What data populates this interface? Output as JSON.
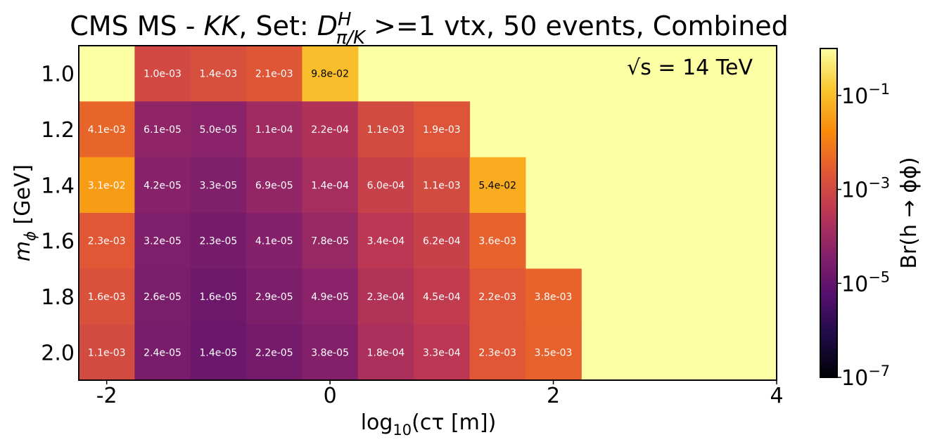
{
  "chart_data": {
    "type": "heatmap",
    "title": {
      "prefix": "CMS MS - ",
      "kk": "KK",
      "set": ", Set: ",
      "d": "D",
      "d_sup": "H",
      "d_sub": "π/K",
      "suffix": " >=1 vtx, 50 events, Combined"
    },
    "xlabel": {
      "base": "log",
      "sub": "10",
      "rest": "(cτ [m])"
    },
    "ylabel": {
      "base": "m",
      "sub": "ϕ",
      "rest": " [GeV]"
    },
    "colorbar_label": "Br(h → ϕϕ)",
    "annotation": "√s = 14 TeV",
    "x_range": [
      -2.25,
      4.0
    ],
    "x_ticks": [
      -2,
      0,
      2,
      4
    ],
    "x_centers": [
      -2.0,
      -1.5,
      -1.0,
      -0.5,
      0.0,
      0.5,
      1.0,
      1.5,
      2.0
    ],
    "y_categories": [
      "1.0",
      "1.2",
      "1.4",
      "1.6",
      "1.8",
      "2.0"
    ],
    "colorscale": "inferno",
    "color_log_range": [
      -7,
      0
    ],
    "background_value": 1.0,
    "colorbar_ticks": [
      {
        "exp": -1,
        "base": "10",
        "sup": "−1"
      },
      {
        "exp": -3,
        "base": "10",
        "sup": "−3"
      },
      {
        "exp": -5,
        "base": "10",
        "sup": "−5"
      },
      {
        "exp": -7,
        "base": "10",
        "sup": "−7"
      }
    ],
    "rows": [
      {
        "y": "1.0",
        "cells": [
          {
            "x": -2.0,
            "label": null
          },
          {
            "x": -1.5,
            "label": "1.0e-03"
          },
          {
            "x": -1.0,
            "label": "1.4e-03"
          },
          {
            "x": -0.5,
            "label": "2.1e-03"
          },
          {
            "x": 0.0,
            "label": "9.8e-02"
          }
        ]
      },
      {
        "y": "1.2",
        "cells": [
          {
            "x": -2.0,
            "label": "4.1e-03"
          },
          {
            "x": -1.5,
            "label": "6.1e-05"
          },
          {
            "x": -1.0,
            "label": "5.0e-05"
          },
          {
            "x": -0.5,
            "label": "1.1e-04"
          },
          {
            "x": 0.0,
            "label": "2.2e-04"
          },
          {
            "x": 0.5,
            "label": "1.1e-03"
          },
          {
            "x": 1.0,
            "label": "1.9e-03"
          }
        ]
      },
      {
        "y": "1.4",
        "cells": [
          {
            "x": -2.0,
            "label": "3.1e-02"
          },
          {
            "x": -1.5,
            "label": "4.2e-05"
          },
          {
            "x": -1.0,
            "label": "3.3e-05"
          },
          {
            "x": -0.5,
            "label": "6.9e-05"
          },
          {
            "x": 0.0,
            "label": "1.4e-04"
          },
          {
            "x": 0.5,
            "label": "6.0e-04"
          },
          {
            "x": 1.0,
            "label": "1.1e-03"
          },
          {
            "x": 1.5,
            "label": "5.4e-02"
          }
        ]
      },
      {
        "y": "1.6",
        "cells": [
          {
            "x": -2.0,
            "label": "2.3e-03"
          },
          {
            "x": -1.5,
            "label": "3.2e-05"
          },
          {
            "x": -1.0,
            "label": "2.3e-05"
          },
          {
            "x": -0.5,
            "label": "4.1e-05"
          },
          {
            "x": 0.0,
            "label": "7.8e-05"
          },
          {
            "x": 0.5,
            "label": "3.4e-04"
          },
          {
            "x": 1.0,
            "label": "6.2e-04"
          },
          {
            "x": 1.5,
            "label": "3.6e-03"
          }
        ]
      },
      {
        "y": "1.8",
        "cells": [
          {
            "x": -2.0,
            "label": "1.6e-03"
          },
          {
            "x": -1.5,
            "label": "2.6e-05"
          },
          {
            "x": -1.0,
            "label": "1.6e-05"
          },
          {
            "x": -0.5,
            "label": "2.9e-05"
          },
          {
            "x": 0.0,
            "label": "4.9e-05"
          },
          {
            "x": 0.5,
            "label": "2.3e-04"
          },
          {
            "x": 1.0,
            "label": "4.5e-04"
          },
          {
            "x": 1.5,
            "label": "2.2e-03"
          },
          {
            "x": 2.0,
            "label": "3.8e-03"
          }
        ]
      },
      {
        "y": "2.0",
        "cells": [
          {
            "x": -2.0,
            "label": "1.1e-03"
          },
          {
            "x": -1.5,
            "label": "2.4e-05"
          },
          {
            "x": -1.0,
            "label": "1.4e-05"
          },
          {
            "x": -0.5,
            "label": "2.2e-05"
          },
          {
            "x": 0.0,
            "label": "3.8e-05"
          },
          {
            "x": 0.5,
            "label": "1.8e-04"
          },
          {
            "x": 1.0,
            "label": "3.3e-04"
          },
          {
            "x": 1.5,
            "label": "2.3e-03"
          },
          {
            "x": 2.0,
            "label": "3.5e-03"
          }
        ]
      }
    ]
  }
}
